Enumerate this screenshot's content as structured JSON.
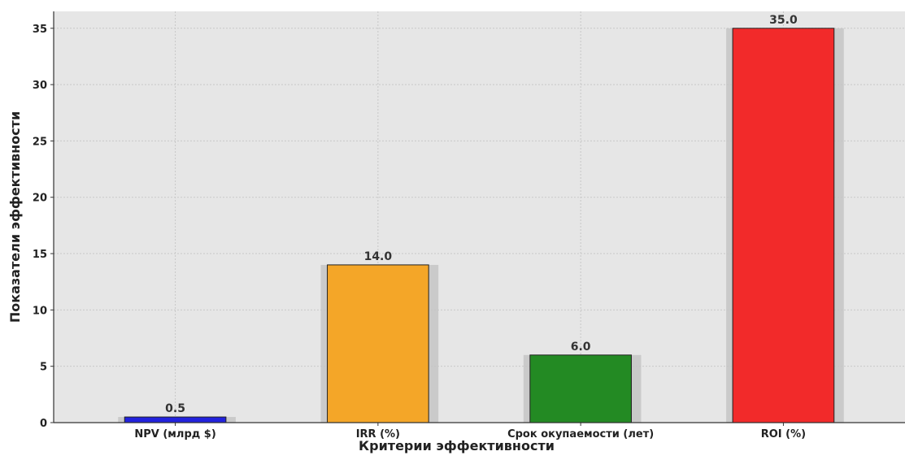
{
  "chart_data": {
    "type": "bar",
    "title": "",
    "xlabel": "Критерии эффективности",
    "ylabel": "Показатели эффективности",
    "categories": [
      "NPV (млрд $)",
      "IRR (%)",
      "Срок окупаемости (лет)",
      "ROI (%)"
    ],
    "values": [
      0.5,
      14.0,
      6.0,
      35.0
    ],
    "value_labels": [
      "0.5",
      "14.0",
      "6.0",
      "35.0"
    ],
    "colors": [
      "#2222dd",
      "#f4a628",
      "#238a23",
      "#f22a2a"
    ],
    "ylim": [
      0,
      36.5
    ],
    "yticks": [
      0,
      5,
      10,
      15,
      20,
      25,
      30,
      35
    ],
    "grid": true,
    "legend": "none",
    "plot_background": "#e6e6e6",
    "shadow_color": "#c4c4c4"
  }
}
